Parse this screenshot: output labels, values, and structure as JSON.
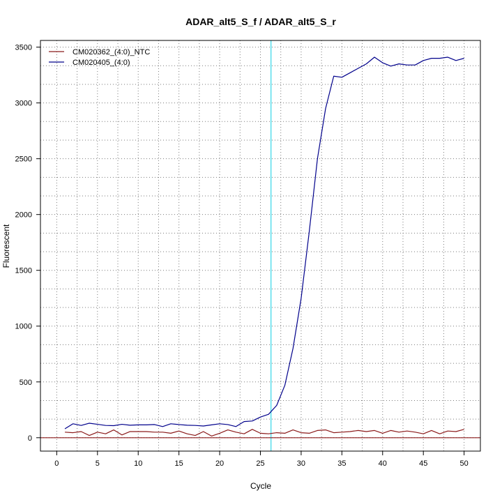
{
  "chart_data": {
    "type": "line",
    "title": "ADAR_alt5_S_f / ADAR_alt5_S_r",
    "xlabel": "Cycle",
    "ylabel": "Fluorescent",
    "xlim": [
      -2,
      52
    ],
    "ylim": [
      -120,
      3560
    ],
    "x_ticks": [
      0,
      5,
      10,
      15,
      20,
      25,
      30,
      35,
      40,
      45,
      50
    ],
    "y_ticks": [
      0,
      500,
      1000,
      1500,
      2000,
      2500,
      3000,
      3500
    ],
    "x_grid": [
      0,
      2.5,
      5,
      7.5,
      10,
      12.5,
      15,
      17.5,
      20,
      22.5,
      25,
      27.5,
      30,
      32.5,
      35,
      37.5,
      40,
      42.5,
      45,
      47.5,
      50
    ],
    "y_grid": [
      0,
      166.7,
      333.3,
      500,
      666.7,
      833.3,
      1000,
      1166.7,
      1333.3,
      1500,
      1666.7,
      1833.3,
      2000,
      2166.7,
      2333.3,
      2500,
      2666.7,
      2833.3,
      3000,
      3166.7,
      3333.3,
      3500
    ],
    "grid": true,
    "legend_position": "top-left",
    "threshold": {
      "x": 26.3,
      "color": "#33d6e8"
    },
    "baseline": {
      "y": 0,
      "color": "#8b1a1a"
    },
    "x": [
      1,
      2,
      3,
      4,
      5,
      6,
      7,
      8,
      9,
      10,
      11,
      12,
      13,
      14,
      15,
      16,
      17,
      18,
      19,
      20,
      21,
      22,
      23,
      24,
      25,
      26,
      27,
      28,
      29,
      30,
      31,
      32,
      33,
      34,
      35,
      36,
      37,
      38,
      39,
      40,
      41,
      42,
      43,
      44,
      45,
      46,
      47,
      48,
      49,
      50
    ],
    "series": [
      {
        "name": "CM020362_(4:0)_NTC",
        "color": "#8b1a1a",
        "values": [
          50,
          45,
          55,
          20,
          50,
          35,
          70,
          25,
          55,
          55,
          55,
          50,
          50,
          40,
          60,
          35,
          20,
          55,
          15,
          40,
          70,
          50,
          35,
          75,
          40,
          35,
          45,
          40,
          70,
          45,
          40,
          65,
          70,
          45,
          50,
          55,
          65,
          55,
          65,
          40,
          65,
          50,
          60,
          50,
          35,
          65,
          35,
          60,
          55,
          75
        ]
      },
      {
        "name": "CM020405_(4:0)",
        "color": "#00008b",
        "values": [
          80,
          125,
          110,
          130,
          120,
          110,
          108,
          120,
          112,
          115,
          115,
          118,
          100,
          125,
          118,
          112,
          110,
          105,
          115,
          125,
          118,
          100,
          145,
          150,
          185,
          210,
          290,
          470,
          800,
          1250,
          1850,
          2500,
          2950,
          3240,
          3230,
          3270,
          3310,
          3350,
          3410,
          3360,
          3330,
          3350,
          3340,
          3340,
          3380,
          3400,
          3400,
          3410,
          3380,
          3400
        ]
      }
    ]
  }
}
